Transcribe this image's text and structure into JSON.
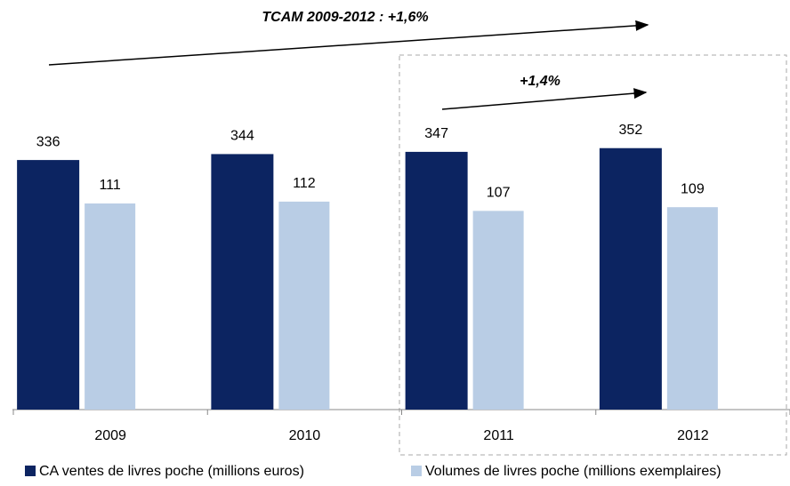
{
  "chart_data": {
    "type": "bar",
    "annotations": [
      "TCAM 2009-2012 :  +1,6%",
      "+1,4%"
    ],
    "categories": [
      "2009",
      "2010",
      "2011",
      "2012"
    ],
    "series": [
      {
        "name": "CA ventes de livres poche (millions euros)",
        "color": "#0c2461",
        "values": [
          336,
          344,
          347,
          352
        ]
      },
      {
        "name": "Volumes de livres poche (millions exemplaires)",
        "color": "#b9cde5",
        "values": [
          111,
          112,
          107,
          109
        ],
        "axis": "y2"
      }
    ],
    "ylim": [
      0,
      500
    ],
    "y2lim": [
      0,
      200
    ],
    "legend": "bottom"
  }
}
